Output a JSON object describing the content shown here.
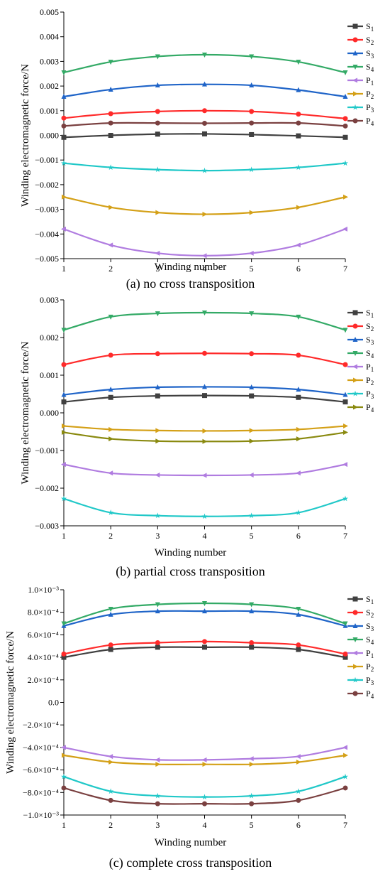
{
  "chart_data": [
    {
      "type": "line",
      "caption": "(a) no cross transposition",
      "xlabel": "Winding number",
      "ylabel": "Winding electromagnetic force/N",
      "x": [
        1,
        2,
        3,
        4,
        5,
        6,
        7
      ],
      "xlim": [
        1,
        7
      ],
      "ylim": [
        -0.005,
        0.005
      ],
      "yticks": [
        -0.005,
        -0.004,
        -0.003,
        -0.002,
        -0.001,
        0.0,
        0.001,
        0.002,
        0.003,
        0.004,
        0.005
      ],
      "ytick_labels": [
        "−0.005",
        "−0.004",
        "−0.003",
        "−0.002",
        "−0.001",
        "0.000",
        "0.001",
        "0.002",
        "0.003",
        "0.004",
        "0.005"
      ],
      "legend_position": "top-right",
      "grid": false,
      "series": [
        {
          "name": "S",
          "sub": "1",
          "color": "#404040",
          "marker": "square",
          "values": [
            -8e-05,
            0.0,
            5e-05,
            6e-05,
            3e-05,
            -2e-05,
            -8e-05
          ]
        },
        {
          "name": "S",
          "sub": "2",
          "color": "#ff2a2a",
          "marker": "circle",
          "values": [
            0.0007,
            0.00088,
            0.00097,
            0.001,
            0.00097,
            0.00086,
            0.00068
          ]
        },
        {
          "name": "S",
          "sub": "3",
          "color": "#1f64c8",
          "marker": "triangle-up",
          "values": [
            0.00157,
            0.00186,
            0.00203,
            0.00207,
            0.00203,
            0.00184,
            0.00157
          ]
        },
        {
          "name": "S",
          "sub": "4",
          "color": "#33aa66",
          "marker": "triangle-down",
          "values": [
            0.00255,
            0.00298,
            0.0032,
            0.00327,
            0.0032,
            0.00298,
            0.00255
          ]
        },
        {
          "name": "P",
          "sub": "1",
          "color": "#b07ce0",
          "marker": "triangle-left",
          "values": [
            -0.0038,
            -0.00445,
            -0.00478,
            -0.00488,
            -0.00478,
            -0.00445,
            -0.0038
          ]
        },
        {
          "name": "P",
          "sub": "2",
          "color": "#d4a017",
          "marker": "triangle-right",
          "values": [
            -0.0025,
            -0.00292,
            -0.00313,
            -0.0032,
            -0.00313,
            -0.00292,
            -0.0025
          ]
        },
        {
          "name": "P",
          "sub": "3",
          "color": "#20c8c8",
          "marker": "star",
          "values": [
            -0.00113,
            -0.0013,
            -0.00139,
            -0.00143,
            -0.00139,
            -0.0013,
            -0.00113
          ]
        },
        {
          "name": "P",
          "sub": "4",
          "color": "#7a4040",
          "marker": "circle",
          "values": [
            0.00038,
            0.0005,
            0.0005,
            0.00049,
            0.0005,
            0.0005,
            0.00038
          ]
        }
      ]
    },
    {
      "type": "line",
      "caption": "(b) partial cross transposition",
      "xlabel": "Winding number",
      "ylabel": "Winding electromagnetic force/N",
      "x": [
        1,
        2,
        3,
        4,
        5,
        6,
        7
      ],
      "xlim": [
        1,
        7
      ],
      "ylim": [
        -0.003,
        0.003
      ],
      "yticks": [
        -0.003,
        -0.002,
        -0.001,
        0.0,
        0.001,
        0.002,
        0.003
      ],
      "ytick_labels": [
        "−0.003",
        "−0.002",
        "−0.001",
        "0.000",
        "0.001",
        "0.002",
        "0.003"
      ],
      "legend_position": "top-right",
      "grid": false,
      "series": [
        {
          "name": "S",
          "sub": "1",
          "color": "#404040",
          "marker": "square",
          "values": [
            0.00029,
            0.00041,
            0.00045,
            0.00046,
            0.00045,
            0.00041,
            0.00029
          ]
        },
        {
          "name": "S",
          "sub": "2",
          "color": "#ff2a2a",
          "marker": "circle",
          "values": [
            0.00128,
            0.00153,
            0.00157,
            0.00158,
            0.00157,
            0.00153,
            0.00128
          ]
        },
        {
          "name": "S",
          "sub": "3",
          "color": "#1f64c8",
          "marker": "triangle-up",
          "values": [
            0.00048,
            0.00062,
            0.00068,
            0.00069,
            0.00068,
            0.00062,
            0.00048
          ]
        },
        {
          "name": "S",
          "sub": "4",
          "color": "#33aa66",
          "marker": "triangle-down",
          "values": [
            0.0022,
            0.00255,
            0.00264,
            0.00266,
            0.00264,
            0.00255,
            0.0022
          ]
        },
        {
          "name": "P",
          "sub": "1",
          "color": "#b07ce0",
          "marker": "triangle-left",
          "values": [
            -0.00137,
            -0.0016,
            -0.00165,
            -0.00166,
            -0.00165,
            -0.0016,
            -0.00137
          ]
        },
        {
          "name": "P",
          "sub": "2",
          "color": "#d4a017",
          "marker": "triangle-right",
          "values": [
            -0.00035,
            -0.00044,
            -0.00047,
            -0.00048,
            -0.00047,
            -0.00044,
            -0.00035
          ]
        },
        {
          "name": "P",
          "sub": "3",
          "color": "#20c8c8",
          "marker": "star",
          "values": [
            -0.00228,
            -0.00265,
            -0.00273,
            -0.00275,
            -0.00273,
            -0.00265,
            -0.00228
          ]
        },
        {
          "name": "P",
          "sub": "4",
          "color": "#8a8a10",
          "marker": "triangle-right",
          "values": [
            -0.00052,
            -0.00069,
            -0.00075,
            -0.00076,
            -0.00075,
            -0.00069,
            -0.00052
          ]
        }
      ]
    },
    {
      "type": "line",
      "caption": "(c) complete cross transposition",
      "xlabel": "Winding number",
      "ylabel": "Winding electromagnetic force/N",
      "x": [
        1,
        2,
        3,
        4,
        5,
        6,
        7
      ],
      "xlim": [
        1,
        7
      ],
      "ylim": [
        -0.001,
        0.001
      ],
      "yticks": [
        -0.001,
        -0.0008,
        -0.0006,
        -0.0004,
        -0.0002,
        0.0,
        0.0002,
        0.0004,
        0.0006,
        0.0008,
        0.001
      ],
      "ytick_labels": [
        "−1.0×10⁻³",
        "−8.0×10⁻⁴",
        "−6.0×10⁻⁴",
        "−4.0×10⁻⁴",
        "−2.0×10⁻⁴",
        "0.0",
        "2.0×10⁻⁴",
        "4.0×10⁻⁴",
        "6.0×10⁻⁴",
        "8.0×10⁻⁴",
        "1.0×10⁻³"
      ],
      "legend_position": "top-right",
      "grid": false,
      "series": [
        {
          "name": "S",
          "sub": "1",
          "color": "#404040",
          "marker": "square",
          "values": [
            0.0004,
            0.00047,
            0.00049,
            0.00049,
            0.00049,
            0.00047,
            0.0004
          ]
        },
        {
          "name": "S",
          "sub": "2",
          "color": "#ff2a2a",
          "marker": "circle",
          "values": [
            0.00043,
            0.00051,
            0.00053,
            0.00054,
            0.00053,
            0.00051,
            0.00043
          ]
        },
        {
          "name": "S",
          "sub": "3",
          "color": "#1f64c8",
          "marker": "triangle-up",
          "values": [
            0.00068,
            0.00078,
            0.00081,
            0.00081,
            0.00081,
            0.00078,
            0.00068
          ]
        },
        {
          "name": "S",
          "sub": "4",
          "color": "#33aa66",
          "marker": "triangle-down",
          "values": [
            0.0007,
            0.00083,
            0.00087,
            0.00088,
            0.00087,
            0.00083,
            0.0007
          ]
        },
        {
          "name": "P",
          "sub": "1",
          "color": "#b07ce0",
          "marker": "triangle-left",
          "values": [
            -0.0004,
            -0.00048,
            -0.00051,
            -0.00051,
            -0.0005,
            -0.00048,
            -0.0004
          ]
        },
        {
          "name": "P",
          "sub": "2",
          "color": "#d4a017",
          "marker": "triangle-right",
          "values": [
            -0.00047,
            -0.00053,
            -0.00055,
            -0.00055,
            -0.00055,
            -0.00053,
            -0.00047
          ]
        },
        {
          "name": "P",
          "sub": "3",
          "color": "#20c8c8",
          "marker": "star",
          "values": [
            -0.00066,
            -0.00079,
            -0.00083,
            -0.00084,
            -0.00083,
            -0.00079,
            -0.00066
          ]
        },
        {
          "name": "P",
          "sub": "4",
          "color": "#7a4040",
          "marker": "circle",
          "values": [
            -0.00076,
            -0.00087,
            -0.0009,
            -0.0009,
            -0.0009,
            -0.00087,
            -0.00076
          ]
        }
      ]
    }
  ]
}
